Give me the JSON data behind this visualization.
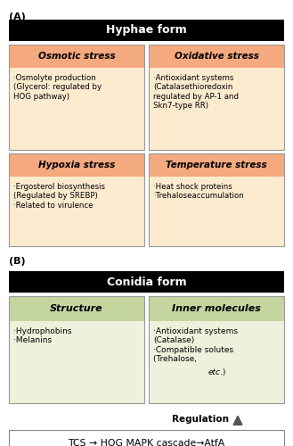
{
  "fig_width": 3.29,
  "fig_height": 5.0,
  "dpi": 100,
  "bg_color": "#ffffff",
  "label_A": "(A)",
  "label_B": "(B)",
  "hyphae_title": "Hyphae form",
  "conidia_title": "Conidia form",
  "header_bg": "#000000",
  "header_fg": "#ffffff",
  "orange_header_bg": "#F5A97F",
  "orange_light": "#FDEBD0",
  "green_header_bg": "#C5D5A0",
  "green_light": "#EDF2DC",
  "cell_border": "#999999",
  "box1_title": "Osmotic stress",
  "box1_body": "·Osmolyte production\n(Glycerol: regulated by\nHOG pathway)",
  "box2_title": "Oxidative stress",
  "box2_body": "·Antioxidant systems\n(Catalasethioredoxin\nregulated by AP-1 and\nSkn7-type RR)",
  "box3_title": "Hypoxia stress",
  "box3_body": "·Ergosterol biosynthesis\n(Regulated by SREBP)\n·Related to virulence",
  "box4_title": "Temperature stress",
  "box4_body": "·Heat shock proteins\n·Trehaloseaccumulation",
  "box5_title": "Structure",
  "box5_body": "·Hydrophobins\n·Melanins",
  "box6_title": "Inner molecules",
  "box6_body": "·Antioxidant systems\n(Catalase)\n·Compatible solutes\n(Trehalose, etc.)",
  "regulation_label": "Regulation",
  "bottom_box_text": "TCS → HOG MAPK cascade→AtfA",
  "etc_italic": "etc"
}
